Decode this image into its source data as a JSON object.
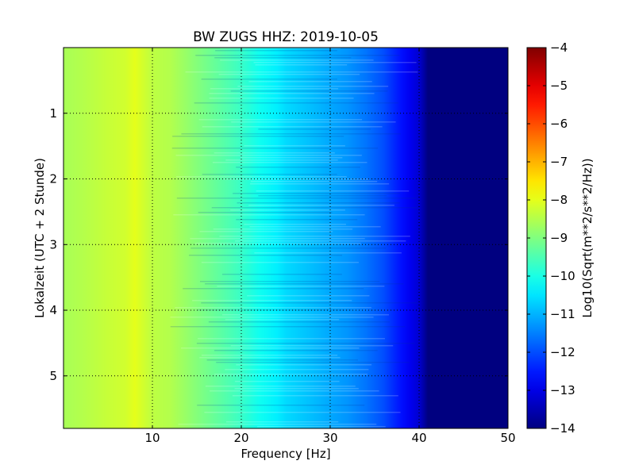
{
  "chart_data": {
    "type": "heatmap",
    "title": "BW ZUGS HHZ: 2019-10-05",
    "xlabel": "Frequency [Hz]",
    "ylabel": "Lokalzeit (UTC + 2 Stunde)",
    "xlim": [
      0,
      50
    ],
    "ylim": [
      5.8,
      0
    ],
    "xticks": [
      10,
      20,
      30,
      40,
      50
    ],
    "yticks": [
      1,
      2,
      3,
      4,
      5
    ],
    "grid": true,
    "colorbar": {
      "label": "Log10(Sqrt(m**2/s**2/Hz))",
      "colormap": "jet",
      "range": [
        -14,
        -4
      ],
      "ticks": [
        -4,
        -5,
        -6,
        -7,
        -8,
        -9,
        -10,
        -11,
        -12,
        -13,
        -14
      ]
    },
    "frequency_profile": {
      "frequency_hz": [
        0,
        2,
        5,
        7,
        8,
        9,
        10,
        12,
        14,
        16,
        18,
        20,
        22,
        24,
        25,
        26,
        28,
        30,
        32,
        34,
        35,
        36,
        37,
        38,
        39,
        40,
        40.5,
        41,
        50
      ],
      "value": [
        -8.6,
        -8.5,
        -8.3,
        -8.2,
        -8.0,
        -8.2,
        -8.4,
        -8.5,
        -8.8,
        -9.1,
        -9.4,
        -9.7,
        -10.1,
        -10.4,
        -10.6,
        -10.7,
        -10.9,
        -11.1,
        -11.3,
        -11.6,
        -11.8,
        -12.0,
        -12.3,
        -12.6,
        -12.9,
        -13.2,
        -13.6,
        -14.0,
        -14.0
      ]
    }
  }
}
